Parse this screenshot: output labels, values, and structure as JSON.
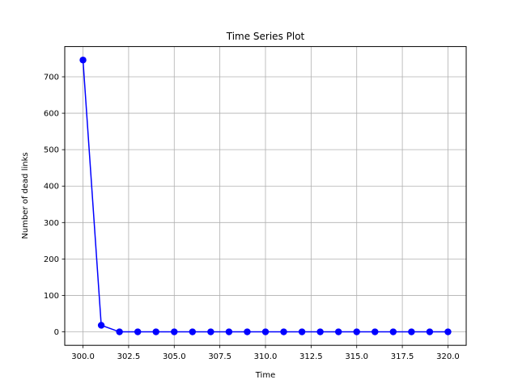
{
  "chart_data": {
    "type": "line",
    "title": "Time Series Plot",
    "xlabel": "Time",
    "ylabel": "Number of dead links",
    "xlim": [
      299,
      321
    ],
    "ylim": [
      -37,
      783
    ],
    "grid": true,
    "x_ticks": [
      300.0,
      302.5,
      305.0,
      307.5,
      310.0,
      312.5,
      315.0,
      317.5,
      320.0
    ],
    "x_tick_labels": [
      "300.0",
      "302.5",
      "305.0",
      "307.5",
      "310.0",
      "312.5",
      "315.0",
      "317.5",
      "320.0"
    ],
    "y_ticks": [
      0,
      100,
      200,
      300,
      400,
      500,
      600,
      700
    ],
    "y_tick_labels": [
      "0",
      "100",
      "200",
      "300",
      "400",
      "500",
      "600",
      "700"
    ],
    "series": [
      {
        "color": "#0000ff",
        "marker": "circle",
        "x": [
          300,
          301,
          302,
          303,
          304,
          305,
          306,
          307,
          308,
          309,
          310,
          311,
          312,
          313,
          314,
          315,
          316,
          317,
          318,
          319,
          320
        ],
        "y": [
          746,
          18,
          0,
          0,
          0,
          0,
          0,
          0,
          0,
          0,
          0,
          0,
          0,
          0,
          0,
          0,
          0,
          0,
          0,
          0,
          0
        ]
      }
    ]
  }
}
